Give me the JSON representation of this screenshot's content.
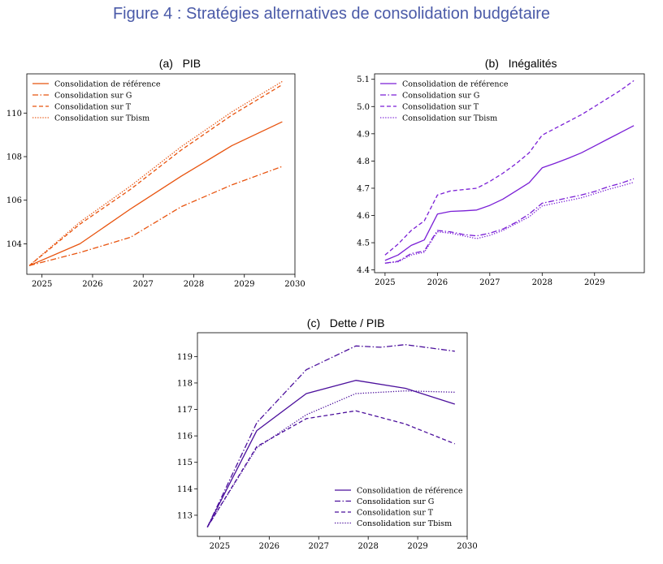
{
  "figure_title": "Figure 4 : Stratégies alternatives de consolidation budgétaire",
  "chart_data": [
    {
      "id": "a",
      "panel_letter": "(a)",
      "panel_title": "PIB",
      "type": "line",
      "color": "#e8530e",
      "xlim": [
        2024.7,
        2030
      ],
      "ylim": [
        102.6,
        111.8
      ],
      "xticks": [
        2025,
        2026,
        2027,
        2028,
        2029,
        2030
      ],
      "yticks": [
        104,
        106,
        108,
        110
      ],
      "legend_position": "top-left",
      "series": [
        {
          "name": "Consolidation de référence",
          "style": "solid",
          "x": [
            2024.75,
            2025.75,
            2026.75,
            2027.75,
            2028.75,
            2029.75
          ],
          "y": [
            103.0,
            104.0,
            105.6,
            107.1,
            108.5,
            109.6
          ]
        },
        {
          "name": "Consolidation sur G",
          "style": "dashdot",
          "x": [
            2024.75,
            2025.75,
            2026.75,
            2027.75,
            2028.75,
            2029.75
          ],
          "y": [
            103.0,
            103.6,
            104.3,
            105.7,
            106.7,
            107.55
          ]
        },
        {
          "name": "Consolidation sur T",
          "style": "dashed",
          "x": [
            2024.75,
            2025.75,
            2026.75,
            2027.75,
            2028.75,
            2029.75
          ],
          "y": [
            103.0,
            104.9,
            106.5,
            108.3,
            109.9,
            111.3
          ]
        },
        {
          "name": "Consolidation sur Tbism",
          "style": "dotted",
          "x": [
            2024.75,
            2025.75,
            2026.75,
            2027.75,
            2028.75,
            2029.75
          ],
          "y": [
            103.0,
            105.0,
            106.65,
            108.45,
            110.05,
            111.45
          ]
        }
      ]
    },
    {
      "id": "b",
      "panel_letter": "(b)",
      "panel_title": "Inégalités",
      "type": "line",
      "color": "#7a1fd6",
      "xlim": [
        2024.8,
        2029.95
      ],
      "ylim": [
        4.39,
        5.12
      ],
      "xticks": [
        2025,
        2026,
        2027,
        2028,
        2029
      ],
      "yticks": [
        4.4,
        4.5,
        4.6,
        4.7,
        4.8,
        4.9,
        5.0,
        5.1
      ],
      "legend_position": "top-left",
      "series": [
        {
          "name": "Consolidation de référence",
          "style": "solid",
          "x": [
            2025.0,
            2025.25,
            2025.5,
            2025.75,
            2026.0,
            2026.25,
            2026.5,
            2026.75,
            2027.0,
            2027.25,
            2027.5,
            2027.75,
            2028.0,
            2028.25,
            2028.5,
            2028.75,
            2029.0,
            2029.25,
            2029.5,
            2029.75
          ],
          "y": [
            4.435,
            4.455,
            4.49,
            4.51,
            4.605,
            4.615,
            4.617,
            4.62,
            4.637,
            4.66,
            4.69,
            4.72,
            4.775,
            4.792,
            4.81,
            4.83,
            4.855,
            4.88,
            4.905,
            4.93
          ]
        },
        {
          "name": "Consolidation sur G",
          "style": "dashdot",
          "x": [
            2025.0,
            2025.25,
            2025.5,
            2025.75,
            2026.0,
            2026.25,
            2026.5,
            2026.75,
            2027.0,
            2027.25,
            2027.5,
            2027.75,
            2028.0,
            2028.25,
            2028.5,
            2028.75,
            2029.0,
            2029.25,
            2029.5,
            2029.75
          ],
          "y": [
            4.425,
            4.432,
            4.46,
            4.47,
            4.545,
            4.54,
            4.53,
            4.525,
            4.535,
            4.55,
            4.575,
            4.605,
            4.645,
            4.655,
            4.665,
            4.675,
            4.688,
            4.705,
            4.718,
            4.735
          ]
        },
        {
          "name": "Consolidation sur T",
          "style": "dashed",
          "x": [
            2025.0,
            2025.25,
            2025.5,
            2025.75,
            2026.0,
            2026.25,
            2026.5,
            2026.75,
            2027.0,
            2027.25,
            2027.5,
            2027.75,
            2028.0,
            2028.25,
            2028.5,
            2028.75,
            2029.0,
            2029.25,
            2029.5,
            2029.75
          ],
          "y": [
            4.455,
            4.495,
            4.545,
            4.58,
            4.675,
            4.69,
            4.695,
            4.7,
            4.725,
            4.755,
            4.79,
            4.83,
            4.895,
            4.92,
            4.945,
            4.97,
            5.0,
            5.03,
            5.06,
            5.095
          ]
        },
        {
          "name": "Consolidation sur Tbism",
          "style": "dotted",
          "x": [
            2025.0,
            2025.25,
            2025.5,
            2025.75,
            2026.0,
            2026.25,
            2026.5,
            2026.75,
            2027.0,
            2027.25,
            2027.5,
            2027.75,
            2028.0,
            2028.25,
            2028.5,
            2028.75,
            2029.0,
            2029.25,
            2029.5,
            2029.75
          ],
          "y": [
            4.425,
            4.43,
            4.455,
            4.465,
            4.54,
            4.535,
            4.525,
            4.515,
            4.527,
            4.545,
            4.57,
            4.595,
            4.635,
            4.645,
            4.655,
            4.665,
            4.68,
            4.695,
            4.708,
            4.722
          ]
        }
      ]
    },
    {
      "id": "c",
      "panel_letter": "(c)",
      "panel_title": "Dette / PIB",
      "type": "line",
      "color": "#4b0f9c",
      "xlim": [
        2024.55,
        2030
      ],
      "ylim": [
        112.2,
        119.9
      ],
      "xticks": [
        2025,
        2026,
        2027,
        2028,
        2029,
        2030
      ],
      "yticks": [
        113,
        114,
        115,
        116,
        117,
        118,
        119
      ],
      "legend_position": "bottom-right",
      "series": [
        {
          "name": "Consolidation de référence",
          "style": "solid",
          "x": [
            2024.75,
            2025.75,
            2026.75,
            2027.75,
            2028.75,
            2029.75
          ],
          "y": [
            112.55,
            116.2,
            117.6,
            118.1,
            117.8,
            117.2
          ]
        },
        {
          "name": "Consolidation sur G",
          "style": "dashdot",
          "x": [
            2024.75,
            2025.75,
            2026.75,
            2027.75,
            2028.25,
            2028.75,
            2029.75
          ],
          "y": [
            112.55,
            116.5,
            118.5,
            119.4,
            119.35,
            119.45,
            119.2
          ]
        },
        {
          "name": "Consolidation sur T",
          "style": "dashed",
          "x": [
            2024.75,
            2025.75,
            2026.75,
            2027.75,
            2028.75,
            2029.75
          ],
          "y": [
            112.55,
            115.6,
            116.65,
            116.95,
            116.45,
            115.7
          ]
        },
        {
          "name": "Consolidation sur Tbism",
          "style": "dotted",
          "x": [
            2024.75,
            2025.75,
            2026.75,
            2027.75,
            2028.75,
            2029.75
          ],
          "y": [
            112.55,
            115.55,
            116.8,
            117.6,
            117.7,
            117.65
          ]
        }
      ]
    }
  ]
}
